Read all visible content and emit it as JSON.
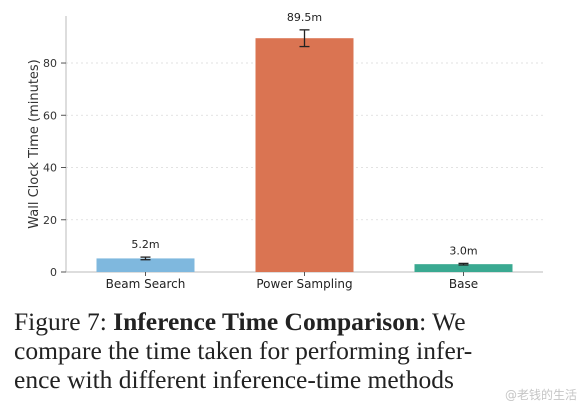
{
  "chart_data": {
    "type": "bar",
    "categories": [
      "Beam Search",
      "Power Sampling",
      "Base"
    ],
    "values": [
      5.2,
      89.5,
      3.0
    ],
    "error": [
      0.5,
      3.2,
      0.3
    ],
    "bar_labels": [
      "5.2m",
      "89.5m",
      "3.0m"
    ],
    "colors": [
      "#7fb8de",
      "#da7452",
      "#3aa991"
    ],
    "title": "",
    "xlabel": "",
    "ylabel": "Wall Clock Time (minutes)",
    "ylim": [
      0,
      98
    ],
    "yticks": [
      0,
      20,
      40,
      60,
      80
    ],
    "grid": true
  },
  "caption": {
    "lead": "Figure 7: ",
    "bold": "Inference Time Comparison",
    "rest1": ": We",
    "line2": "compare the time taken for performing infer-",
    "line3": "ence with different inference-time methods"
  },
  "watermark": "@老钱的生活"
}
